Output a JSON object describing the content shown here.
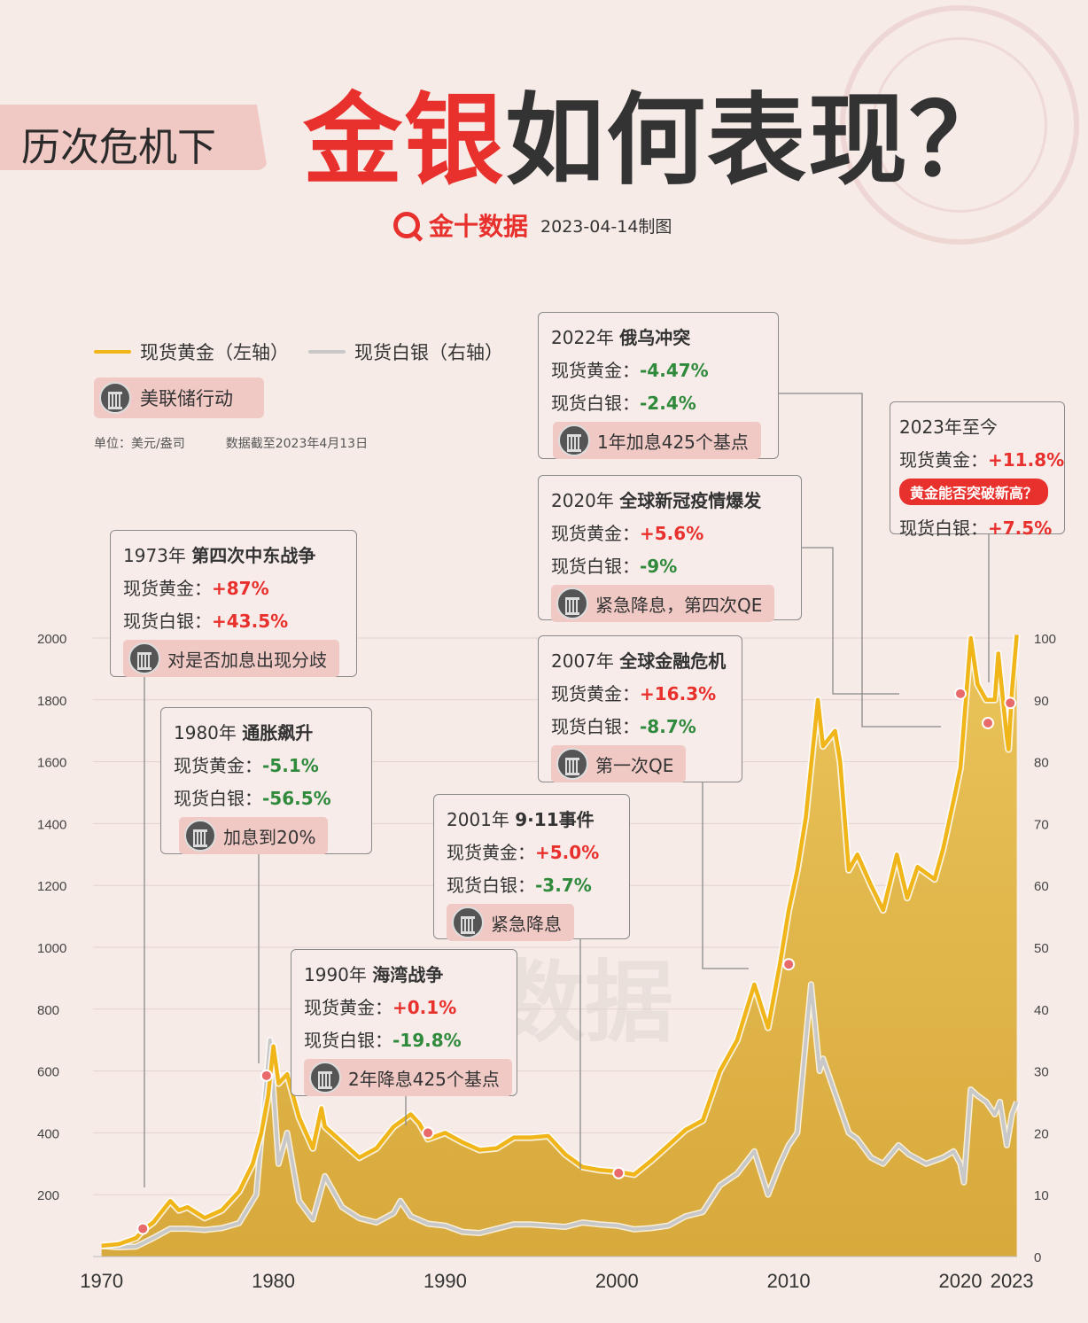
{
  "header": {
    "subtitle": "历次危机下",
    "title_red": "金银",
    "title_dark": "如何表现？",
    "brand": "金十数据",
    "date": "2023-04-14制图"
  },
  "legend": {
    "gold": "现货黄金（左轴）",
    "silver": "现货白银（右轴）",
    "fed": "美联储行动",
    "unit": "单位：美元/盎司",
    "cutoff": "数据截至2023年4月13日"
  },
  "watermark": "金十数据",
  "colors": {
    "gold": "#f0b619",
    "silver": "#c8c8c8",
    "up": "#e8302c",
    "down": "#2f8a3c",
    "marker": "#e96a6a"
  },
  "events": [
    {
      "year": "1973年",
      "name": "第四次中东战争",
      "gold_label": "现货黄金：",
      "gold": "+87%",
      "silver_label": "现货白银：",
      "silver": "+43.5%",
      "action": "对是否加息出现分歧"
    },
    {
      "year": "1980年",
      "name": "通胀飙升",
      "gold_label": "现货黄金：",
      "gold": "-5.1%",
      "silver_label": "现货白银：",
      "silver": "-56.5%",
      "action": "加息到20%"
    },
    {
      "year": "1990年",
      "name": "海湾战争",
      "gold_label": "现货黄金：",
      "gold": "+0.1%",
      "silver_label": "现货白银：",
      "silver": "-19.8%",
      "action": "2年降息425个基点"
    },
    {
      "year": "2001年",
      "name": "9·11事件",
      "gold_label": "现货黄金：",
      "gold": "+5.0%",
      "silver_label": "现货白银：",
      "silver": "-3.7%",
      "action": "紧急降息"
    },
    {
      "year": "2007年",
      "name": "全球金融危机",
      "gold_label": "现货黄金：",
      "gold": "+16.3%",
      "silver_label": "现货白银：",
      "silver": "-8.7%",
      "action": "第一次QE"
    },
    {
      "year": "2020年",
      "name": "全球新冠疫情爆发",
      "gold_label": "现货黄金：",
      "gold": "+5.6%",
      "silver_label": "现货白银：",
      "silver": "-9%",
      "action": "紧急降息，第四次QE"
    },
    {
      "year": "2022年",
      "name": "俄乌冲突",
      "gold_label": "现货黄金：",
      "gold": "-4.47%",
      "silver_label": "现货白银：",
      "silver": "-2.4%",
      "action": "1年加息425个基点"
    },
    {
      "year": "2023年至今",
      "gold_label": "现货黄金：",
      "gold": "+11.8%",
      "question": "黄金能否突破新高？",
      "silver_label": "现货白银：",
      "silver": "+7.5%"
    }
  ],
  "chart_data": {
    "type": "area",
    "xlim": [
      1969.5,
      2023.3
    ],
    "ylim_left": [
      0,
      2000
    ],
    "ylim_right": [
      0,
      100
    ],
    "x_ticks": [
      "1970",
      "1980",
      "1990",
      "2000",
      "2010",
      "2020",
      "2023"
    ],
    "x_tick_values": [
      1970,
      1980,
      1990,
      2000,
      2010,
      2020,
      2023
    ],
    "y_ticks_left": [
      "200",
      "400",
      "600",
      "800",
      "1000",
      "1200",
      "1400",
      "1600",
      "1800",
      "2000"
    ],
    "y_tick_values_left": [
      200,
      400,
      600,
      800,
      1000,
      1200,
      1400,
      1600,
      1800,
      2000
    ],
    "y_ticks_right": [
      "0",
      "10",
      "20",
      "30",
      "40",
      "50",
      "60",
      "70",
      "80",
      "90",
      "100"
    ],
    "y_tick_values_right": [
      0,
      10,
      20,
      30,
      40,
      50,
      60,
      70,
      80,
      90,
      100
    ],
    "series": [
      {
        "axis": "left",
        "points": [
          [
            1970,
            35
          ],
          [
            1971,
            40
          ],
          [
            1972,
            60
          ],
          [
            1972.5,
            90
          ],
          [
            1973,
            110
          ],
          [
            1973.5,
            145
          ],
          [
            1974,
            180
          ],
          [
            1974.5,
            150
          ],
          [
            1975,
            160
          ],
          [
            1976,
            125
          ],
          [
            1977,
            150
          ],
          [
            1978,
            210
          ],
          [
            1978.8,
            300
          ],
          [
            1979.3,
            400
          ],
          [
            1979.7,
            520
          ],
          [
            1980,
            680
          ],
          [
            1980.3,
            560
          ],
          [
            1980.8,
            590
          ],
          [
            1981.5,
            450
          ],
          [
            1982.3,
            350
          ],
          [
            1982.8,
            480
          ],
          [
            1983,
            420
          ],
          [
            1984,
            370
          ],
          [
            1985,
            320
          ],
          [
            1986,
            350
          ],
          [
            1987,
            420
          ],
          [
            1988,
            460
          ],
          [
            1988.5,
            430
          ],
          [
            1989,
            380
          ],
          [
            1990,
            400
          ],
          [
            1991,
            370
          ],
          [
            1992,
            345
          ],
          [
            1993,
            350
          ],
          [
            1994,
            385
          ],
          [
            1995,
            385
          ],
          [
            1996,
            390
          ],
          [
            1997,
            330
          ],
          [
            1998,
            290
          ],
          [
            1999,
            280
          ],
          [
            2000,
            275
          ],
          [
            2001,
            265
          ],
          [
            2002,
            310
          ],
          [
            2003,
            360
          ],
          [
            2004,
            410
          ],
          [
            2005,
            440
          ],
          [
            2006,
            600
          ],
          [
            2007,
            700
          ],
          [
            2008,
            880
          ],
          [
            2008.8,
            740
          ],
          [
            2009.5,
            950
          ],
          [
            2010,
            1120
          ],
          [
            2010.5,
            1250
          ],
          [
            2011,
            1420
          ],
          [
            2011.7,
            1800
          ],
          [
            2012,
            1650
          ],
          [
            2012.7,
            1700
          ],
          [
            2013,
            1600
          ],
          [
            2013.5,
            1250
          ],
          [
            2014,
            1300
          ],
          [
            2014.8,
            1200
          ],
          [
            2015.5,
            1120
          ],
          [
            2016.3,
            1300
          ],
          [
            2016.9,
            1160
          ],
          [
            2017.5,
            1260
          ],
          [
            2018.5,
            1220
          ],
          [
            2019,
            1320
          ],
          [
            2019.7,
            1500
          ],
          [
            2020,
            1580
          ],
          [
            2020.6,
            2000
          ],
          [
            2021,
            1850
          ],
          [
            2021.5,
            1800
          ],
          [
            2022,
            1800
          ],
          [
            2022.2,
            1950
          ],
          [
            2022.7,
            1680
          ],
          [
            2022.8,
            1640
          ],
          [
            2023,
            1830
          ],
          [
            2023.28,
            2010
          ]
        ]
      },
      {
        "axis": "right",
        "points": [
          [
            1970,
            1.7
          ],
          [
            1971,
            1.5
          ],
          [
            1972,
            1.6
          ],
          [
            1973,
            3
          ],
          [
            1974,
            4.5
          ],
          [
            1975,
            4.5
          ],
          [
            1976,
            4.3
          ],
          [
            1977,
            4.6
          ],
          [
            1978,
            5.4
          ],
          [
            1979,
            10
          ],
          [
            1979.8,
            35
          ],
          [
            1980.3,
            15
          ],
          [
            1980.8,
            20
          ],
          [
            1981.5,
            9
          ],
          [
            1982.3,
            6
          ],
          [
            1983,
            13
          ],
          [
            1983.8,
            9
          ],
          [
            1984,
            8
          ],
          [
            1985,
            6.2
          ],
          [
            1986,
            5.5
          ],
          [
            1987,
            7
          ],
          [
            1987.4,
            9
          ],
          [
            1988,
            6.5
          ],
          [
            1989,
            5.3
          ],
          [
            1990,
            5
          ],
          [
            1991,
            4
          ],
          [
            1992,
            3.8
          ],
          [
            1993,
            4.5
          ],
          [
            1994,
            5.2
          ],
          [
            1995,
            5.2
          ],
          [
            1996,
            5
          ],
          [
            1997,
            4.8
          ],
          [
            1998,
            5.5
          ],
          [
            1999,
            5.2
          ],
          [
            2000,
            5
          ],
          [
            2001,
            4.4
          ],
          [
            2002,
            4.6
          ],
          [
            2003,
            5
          ],
          [
            2004,
            6.5
          ],
          [
            2005,
            7.2
          ],
          [
            2006,
            11.5
          ],
          [
            2007,
            13.4
          ],
          [
            2008,
            17
          ],
          [
            2008.8,
            10
          ],
          [
            2009.5,
            15
          ],
          [
            2010,
            18
          ],
          [
            2010.5,
            20
          ],
          [
            2011,
            35
          ],
          [
            2011.3,
            44
          ],
          [
            2011.8,
            30
          ],
          [
            2012,
            32
          ],
          [
            2013,
            24
          ],
          [
            2013.5,
            20
          ],
          [
            2014,
            19
          ],
          [
            2014.8,
            16
          ],
          [
            2015.5,
            15
          ],
          [
            2016.4,
            18
          ],
          [
            2017,
            16.5
          ],
          [
            2018,
            15
          ],
          [
            2019,
            16
          ],
          [
            2019.6,
            17
          ],
          [
            2020,
            15
          ],
          [
            2020.2,
            12
          ],
          [
            2020.6,
            27
          ],
          [
            2021,
            26
          ],
          [
            2021.5,
            25
          ],
          [
            2022,
            23
          ],
          [
            2022.3,
            25
          ],
          [
            2022.7,
            18
          ],
          [
            2023,
            23
          ],
          [
            2023.28,
            25
          ]
        ]
      }
    ],
    "markers": [
      [
        1972.4,
        90
      ],
      [
        1979.6,
        585
      ],
      [
        1989,
        400
      ],
      [
        2000.1,
        270
      ],
      [
        2010,
        945
      ],
      [
        2020,
        1820
      ],
      [
        2021.6,
        1725
      ],
      [
        2022.9,
        1790
      ]
    ]
  }
}
